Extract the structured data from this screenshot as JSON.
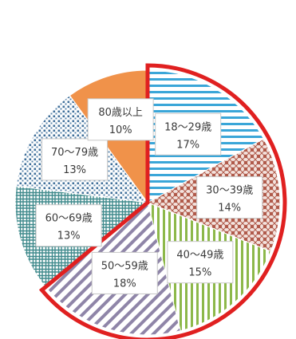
{
  "chart_data": {
    "type": "pie",
    "categories": [
      "18～29歳",
      "30～39歳",
      "40～49歳",
      "50～59歳",
      "60～69歳",
      "70～79歳",
      "80歳以上"
    ],
    "values": [
      17,
      14,
      15,
      18,
      13,
      13,
      10
    ],
    "value_labels": [
      "17%",
      "14%",
      "15%",
      "18%",
      "13%",
      "13%",
      "10%"
    ],
    "colors": [
      "#3aa6d8",
      "#b05a4a",
      "#8db84a",
      "#8f85a8",
      "#3f8a8c",
      "#3f6f9a",
      "#f0924a"
    ],
    "highlight": {
      "categories": [
        "18～29歳",
        "30～39歳",
        "40～49歳",
        "50～59歳"
      ],
      "color": "#e02020"
    },
    "start": "12 o'clock",
    "direction": "clockwise"
  }
}
